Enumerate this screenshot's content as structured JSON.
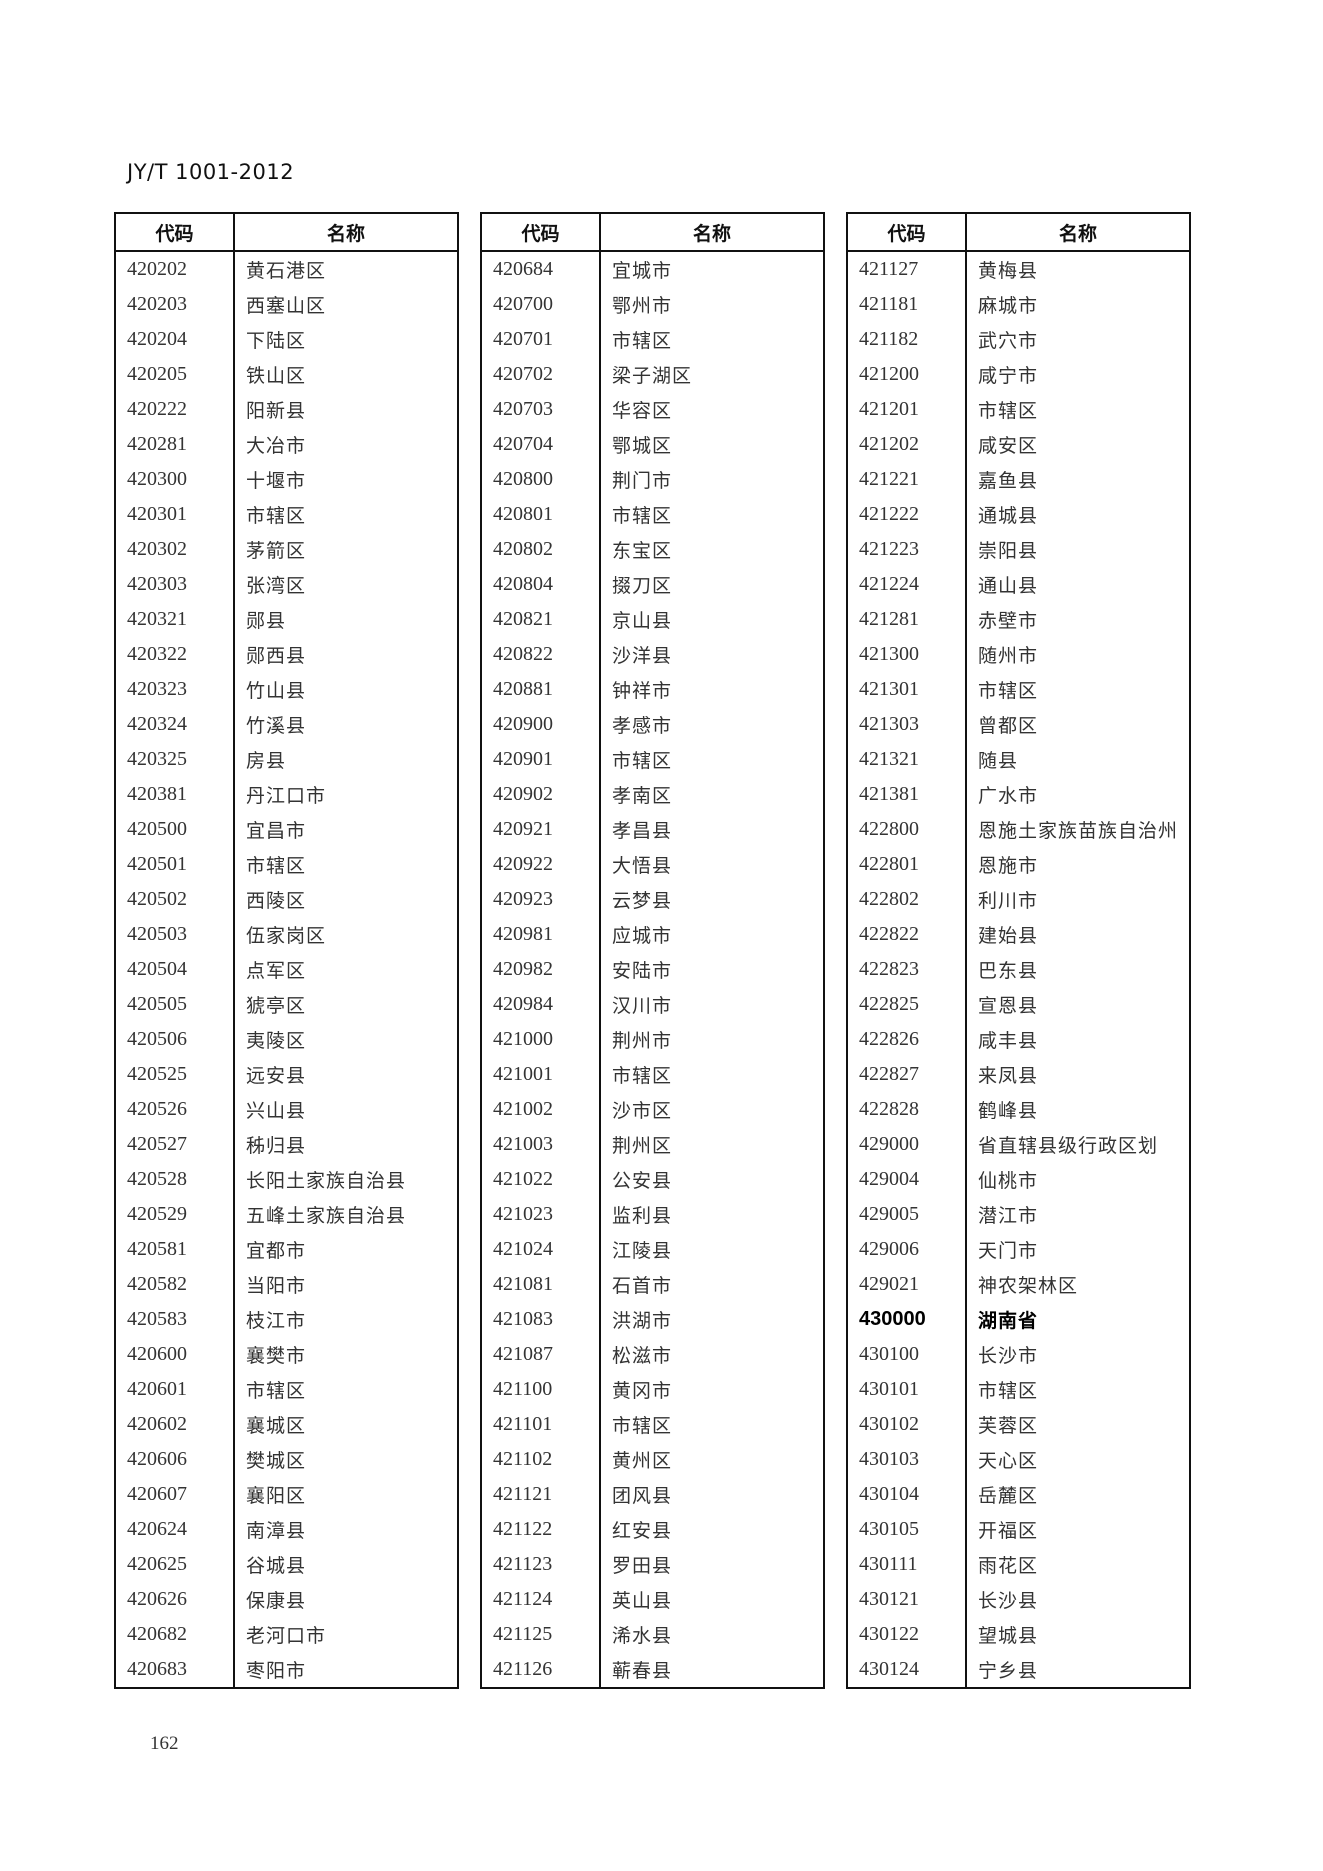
{
  "header": "JY/T 1001-2012",
  "page_number": "162",
  "columns": {
    "code": "代码",
    "name": "名称"
  },
  "tables": [
    [
      [
        "420202",
        "黄石港区"
      ],
      [
        "420203",
        "西塞山区"
      ],
      [
        "420204",
        "下陆区"
      ],
      [
        "420205",
        "铁山区"
      ],
      [
        "420222",
        "阳新县"
      ],
      [
        "420281",
        "大冶市"
      ],
      [
        "420300",
        "十堰市"
      ],
      [
        "420301",
        "市辖区"
      ],
      [
        "420302",
        "茅箭区"
      ],
      [
        "420303",
        "张湾区"
      ],
      [
        "420321",
        "郧县"
      ],
      [
        "420322",
        "郧西县"
      ],
      [
        "420323",
        "竹山县"
      ],
      [
        "420324",
        "竹溪县"
      ],
      [
        "420325",
        "房县"
      ],
      [
        "420381",
        "丹江口市"
      ],
      [
        "420500",
        "宜昌市"
      ],
      [
        "420501",
        "市辖区"
      ],
      [
        "420502",
        "西陵区"
      ],
      [
        "420503",
        "伍家岗区"
      ],
      [
        "420504",
        "点军区"
      ],
      [
        "420505",
        "猇亭区"
      ],
      [
        "420506",
        "夷陵区"
      ],
      [
        "420525",
        "远安县"
      ],
      [
        "420526",
        "兴山县"
      ],
      [
        "420527",
        "秭归县"
      ],
      [
        "420528",
        "长阳土家族自治县"
      ],
      [
        "420529",
        "五峰土家族自治县"
      ],
      [
        "420581",
        "宜都市"
      ],
      [
        "420582",
        "当阳市"
      ],
      [
        "420583",
        "枝江市"
      ],
      [
        "420600",
        "襄樊市"
      ],
      [
        "420601",
        "市辖区"
      ],
      [
        "420602",
        "襄城区"
      ],
      [
        "420606",
        "樊城区"
      ],
      [
        "420607",
        "襄阳区"
      ],
      [
        "420624",
        "南漳县"
      ],
      [
        "420625",
        "谷城县"
      ],
      [
        "420626",
        "保康县"
      ],
      [
        "420682",
        "老河口市"
      ],
      [
        "420683",
        "枣阳市"
      ]
    ],
    [
      [
        "420684",
        "宜城市"
      ],
      [
        "420700",
        "鄂州市"
      ],
      [
        "420701",
        "市辖区"
      ],
      [
        "420702",
        "梁子湖区"
      ],
      [
        "420703",
        "华容区"
      ],
      [
        "420704",
        "鄂城区"
      ],
      [
        "420800",
        "荆门市"
      ],
      [
        "420801",
        "市辖区"
      ],
      [
        "420802",
        "东宝区"
      ],
      [
        "420804",
        "掇刀区"
      ],
      [
        "420821",
        "京山县"
      ],
      [
        "420822",
        "沙洋县"
      ],
      [
        "420881",
        "钟祥市"
      ],
      [
        "420900",
        "孝感市"
      ],
      [
        "420901",
        "市辖区"
      ],
      [
        "420902",
        "孝南区"
      ],
      [
        "420921",
        "孝昌县"
      ],
      [
        "420922",
        "大悟县"
      ],
      [
        "420923",
        "云梦县"
      ],
      [
        "420981",
        "应城市"
      ],
      [
        "420982",
        "安陆市"
      ],
      [
        "420984",
        "汉川市"
      ],
      [
        "421000",
        "荆州市"
      ],
      [
        "421001",
        "市辖区"
      ],
      [
        "421002",
        "沙市区"
      ],
      [
        "421003",
        "荆州区"
      ],
      [
        "421022",
        "公安县"
      ],
      [
        "421023",
        "监利县"
      ],
      [
        "421024",
        "江陵县"
      ],
      [
        "421081",
        "石首市"
      ],
      [
        "421083",
        "洪湖市"
      ],
      [
        "421087",
        "松滋市"
      ],
      [
        "421100",
        "黄冈市"
      ],
      [
        "421101",
        "市辖区"
      ],
      [
        "421102",
        "黄州区"
      ],
      [
        "421121",
        "团风县"
      ],
      [
        "421122",
        "红安县"
      ],
      [
        "421123",
        "罗田县"
      ],
      [
        "421124",
        "英山县"
      ],
      [
        "421125",
        "浠水县"
      ],
      [
        "421126",
        "蕲春县"
      ]
    ],
    [
      [
        "421127",
        "黄梅县"
      ],
      [
        "421181",
        "麻城市"
      ],
      [
        "421182",
        "武穴市"
      ],
      [
        "421200",
        "咸宁市"
      ],
      [
        "421201",
        "市辖区"
      ],
      [
        "421202",
        "咸安区"
      ],
      [
        "421221",
        "嘉鱼县"
      ],
      [
        "421222",
        "通城县"
      ],
      [
        "421223",
        "崇阳县"
      ],
      [
        "421224",
        "通山县"
      ],
      [
        "421281",
        "赤壁市"
      ],
      [
        "421300",
        "随州市"
      ],
      [
        "421301",
        "市辖区"
      ],
      [
        "421303",
        "曾都区"
      ],
      [
        "421321",
        "随县"
      ],
      [
        "421381",
        "广水市"
      ],
      [
        "422800",
        "恩施土家族苗族自治州"
      ],
      [
        "422801",
        "恩施市"
      ],
      [
        "422802",
        "利川市"
      ],
      [
        "422822",
        "建始县"
      ],
      [
        "422823",
        "巴东县"
      ],
      [
        "422825",
        "宣恩县"
      ],
      [
        "422826",
        "咸丰县"
      ],
      [
        "422827",
        "来凤县"
      ],
      [
        "422828",
        "鹤峰县"
      ],
      [
        "429000",
        "省直辖县级行政区划"
      ],
      [
        "429004",
        "仙桃市"
      ],
      [
        "429005",
        "潜江市"
      ],
      [
        "429006",
        "天门市"
      ],
      [
        "429021",
        "神农架林区"
      ],
      [
        "430000",
        "湖南省"
      ],
      [
        "430100",
        "长沙市"
      ],
      [
        "430101",
        "市辖区"
      ],
      [
        "430102",
        "芙蓉区"
      ],
      [
        "430103",
        "天心区"
      ],
      [
        "430104",
        "岳麓区"
      ],
      [
        "430105",
        "开福区"
      ],
      [
        "430111",
        "雨花区"
      ],
      [
        "430121",
        "长沙县"
      ],
      [
        "430122",
        "望城县"
      ],
      [
        "430124",
        "宁乡县"
      ]
    ]
  ],
  "bold_codes": [
    "430000"
  ]
}
